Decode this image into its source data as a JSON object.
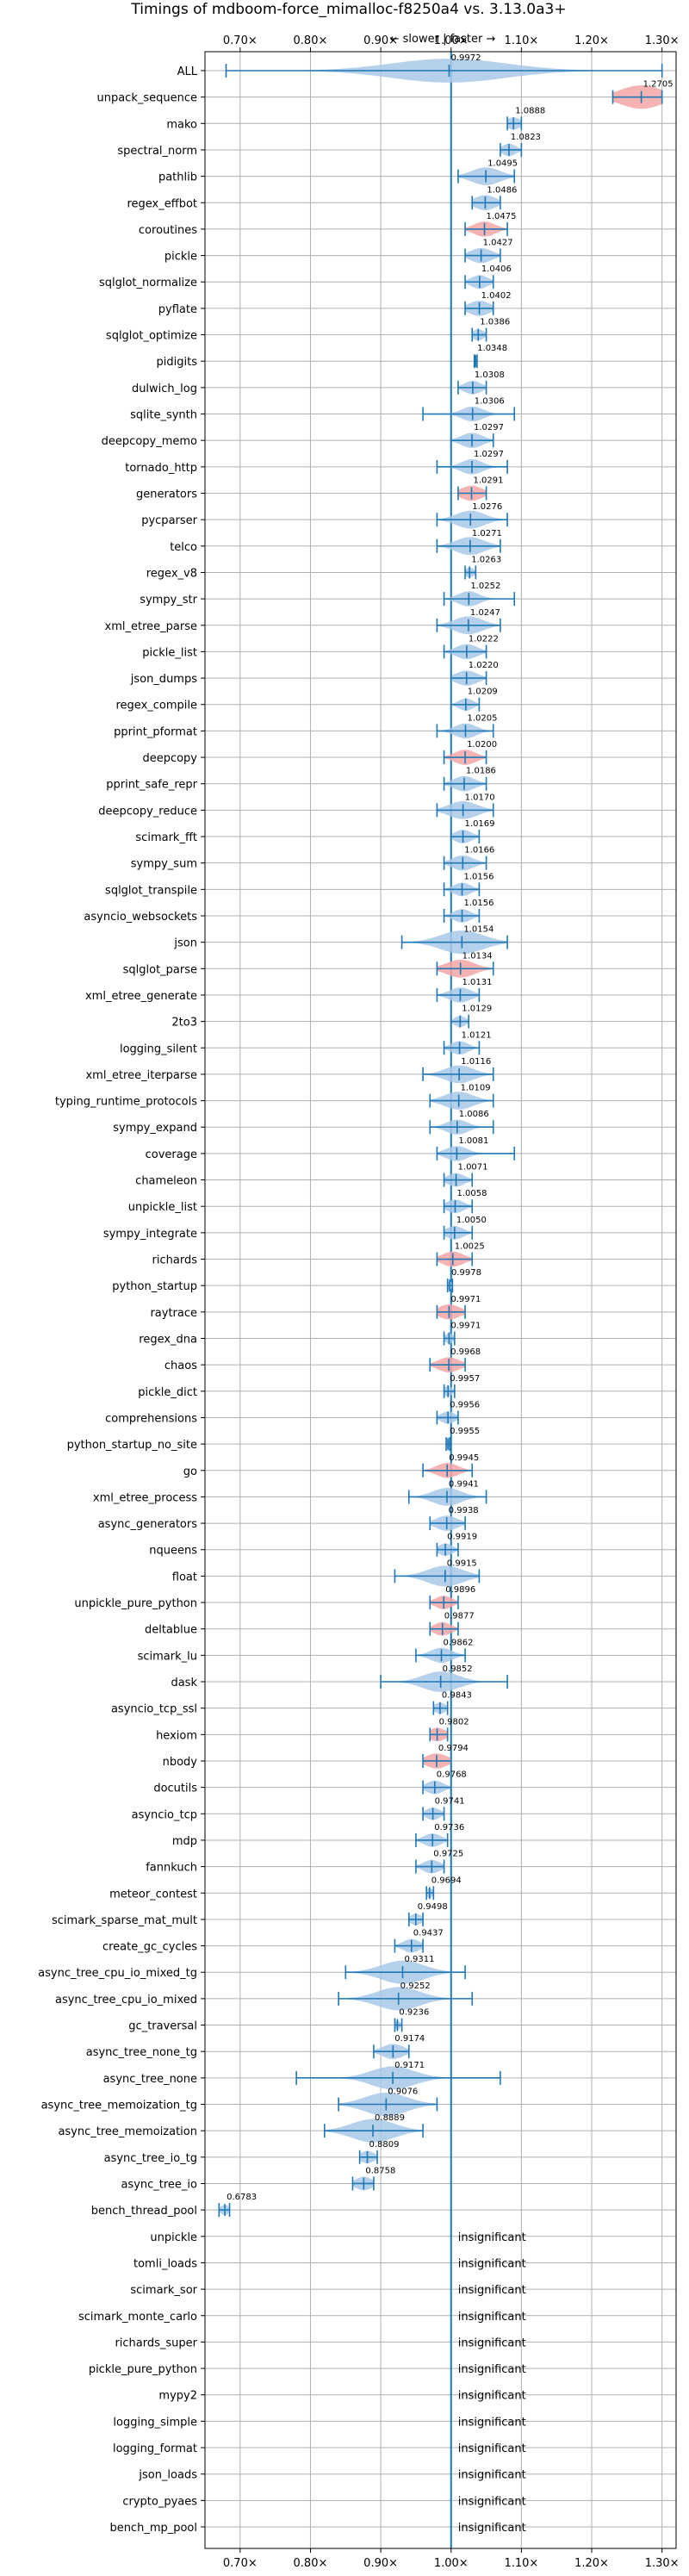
{
  "chart_data": {
    "type": "violin",
    "title": "Timings of mdboom-force_mimalloc-f8250a4 vs. 3.13.0a3+",
    "axis_label": "← slower | faster →",
    "xlim": [
      0.65,
      1.32
    ],
    "x_ticks": [
      0.7,
      0.8,
      0.9,
      1.0,
      1.1,
      1.2,
      1.3
    ],
    "x_tick_labels": [
      "0.70×",
      "0.80×",
      "0.90×",
      "1.00×",
      "1.10×",
      "1.20×",
      "1.30×"
    ],
    "grid": true,
    "colors": {
      "normal": "#a8c8e8",
      "highlight": "#f4a6a6",
      "line": "#1f77b4"
    },
    "insignificant_label": "insignificant",
    "benchmarks": [
      {
        "name": "ALL",
        "value": 0.9972,
        "label": "0.9972",
        "lo": 0.68,
        "hi": 1.3,
        "spread": 0.08,
        "highlight": false
      },
      {
        "name": "unpack_sequence",
        "value": 1.2705,
        "label": "1.2705",
        "lo": 1.23,
        "hi": 1.3,
        "spread": 0.03,
        "highlight": true
      },
      {
        "name": "mako",
        "value": 1.0888,
        "label": "1.0888",
        "lo": 1.08,
        "hi": 1.1,
        "spread": 0.01,
        "highlight": false
      },
      {
        "name": "spectral_norm",
        "value": 1.0823,
        "label": "1.0823",
        "lo": 1.07,
        "hi": 1.1,
        "spread": 0.01,
        "highlight": false
      },
      {
        "name": "pathlib",
        "value": 1.0495,
        "label": "1.0495",
        "lo": 1.01,
        "hi": 1.09,
        "spread": 0.02,
        "highlight": false
      },
      {
        "name": "regex_effbot",
        "value": 1.0486,
        "label": "1.0486",
        "lo": 1.03,
        "hi": 1.07,
        "spread": 0.015,
        "highlight": false
      },
      {
        "name": "coroutines",
        "value": 1.0475,
        "label": "1.0475",
        "lo": 1.02,
        "hi": 1.08,
        "spread": 0.015,
        "highlight": true
      },
      {
        "name": "pickle",
        "value": 1.0427,
        "label": "1.0427",
        "lo": 1.02,
        "hi": 1.07,
        "spread": 0.015,
        "highlight": false
      },
      {
        "name": "sqlglot_normalize",
        "value": 1.0406,
        "label": "1.0406",
        "lo": 1.02,
        "hi": 1.06,
        "spread": 0.012,
        "highlight": false
      },
      {
        "name": "pyflate",
        "value": 1.0402,
        "label": "1.0402",
        "lo": 1.02,
        "hi": 1.06,
        "spread": 0.015,
        "highlight": false
      },
      {
        "name": "sqlglot_optimize",
        "value": 1.0386,
        "label": "1.0386",
        "lo": 1.03,
        "hi": 1.05,
        "spread": 0.008,
        "highlight": false
      },
      {
        "name": "pidigits",
        "value": 1.0348,
        "label": "1.0348",
        "lo": 1.033,
        "hi": 1.037,
        "spread": 0.002,
        "highlight": false
      },
      {
        "name": "dulwich_log",
        "value": 1.0308,
        "label": "1.0308",
        "lo": 1.01,
        "hi": 1.05,
        "spread": 0.012,
        "highlight": false
      },
      {
        "name": "sqlite_synth",
        "value": 1.0306,
        "label": "1.0306",
        "lo": 0.96,
        "hi": 1.09,
        "spread": 0.015,
        "highlight": false
      },
      {
        "name": "deepcopy_memo",
        "value": 1.0297,
        "label": "1.0297",
        "lo": 1.0,
        "hi": 1.06,
        "spread": 0.015,
        "highlight": false
      },
      {
        "name": "tornado_http",
        "value": 1.0297,
        "label": "1.0297",
        "lo": 0.98,
        "hi": 1.08,
        "spread": 0.015,
        "highlight": false
      },
      {
        "name": "generators",
        "value": 1.0291,
        "label": "1.0291",
        "lo": 1.01,
        "hi": 1.05,
        "spread": 0.015,
        "highlight": true
      },
      {
        "name": "pycparser",
        "value": 1.0276,
        "label": "1.0276",
        "lo": 0.98,
        "hi": 1.08,
        "spread": 0.02,
        "highlight": false
      },
      {
        "name": "telco",
        "value": 1.0271,
        "label": "1.0271",
        "lo": 0.98,
        "hi": 1.07,
        "spread": 0.02,
        "highlight": false
      },
      {
        "name": "regex_v8",
        "value": 1.0263,
        "label": "1.0263",
        "lo": 1.02,
        "hi": 1.035,
        "spread": 0.006,
        "highlight": false
      },
      {
        "name": "sympy_str",
        "value": 1.0252,
        "label": "1.0252",
        "lo": 0.99,
        "hi": 1.09,
        "spread": 0.015,
        "highlight": false
      },
      {
        "name": "xml_etree_parse",
        "value": 1.0247,
        "label": "1.0247",
        "lo": 0.98,
        "hi": 1.07,
        "spread": 0.02,
        "highlight": false
      },
      {
        "name": "pickle_list",
        "value": 1.0222,
        "label": "1.0222",
        "lo": 0.99,
        "hi": 1.05,
        "spread": 0.015,
        "highlight": false
      },
      {
        "name": "json_dumps",
        "value": 1.022,
        "label": "1.0220",
        "lo": 1.0,
        "hi": 1.05,
        "spread": 0.015,
        "highlight": false
      },
      {
        "name": "regex_compile",
        "value": 1.0209,
        "label": "1.0209",
        "lo": 1.0,
        "hi": 1.04,
        "spread": 0.01,
        "highlight": false
      },
      {
        "name": "pprint_pformat",
        "value": 1.0205,
        "label": "1.0205",
        "lo": 0.98,
        "hi": 1.06,
        "spread": 0.015,
        "highlight": false
      },
      {
        "name": "deepcopy",
        "value": 1.02,
        "label": "1.0200",
        "lo": 0.99,
        "hi": 1.05,
        "spread": 0.015,
        "highlight": true
      },
      {
        "name": "pprint_safe_repr",
        "value": 1.0186,
        "label": "1.0186",
        "lo": 0.99,
        "hi": 1.05,
        "spread": 0.015,
        "highlight": false
      },
      {
        "name": "deepcopy_reduce",
        "value": 1.017,
        "label": "1.0170",
        "lo": 0.98,
        "hi": 1.06,
        "spread": 0.02,
        "highlight": false
      },
      {
        "name": "scimark_fft",
        "value": 1.0169,
        "label": "1.0169",
        "lo": 1.0,
        "hi": 1.04,
        "spread": 0.012,
        "highlight": false
      },
      {
        "name": "sympy_sum",
        "value": 1.0166,
        "label": "1.0166",
        "lo": 0.99,
        "hi": 1.05,
        "spread": 0.015,
        "highlight": false
      },
      {
        "name": "sqlglot_transpile",
        "value": 1.0156,
        "label": "1.0156",
        "lo": 0.99,
        "hi": 1.04,
        "spread": 0.012,
        "highlight": false
      },
      {
        "name": "asyncio_websockets",
        "value": 1.0156,
        "label": "1.0156",
        "lo": 0.99,
        "hi": 1.04,
        "spread": 0.012,
        "highlight": false
      },
      {
        "name": "json",
        "value": 1.0154,
        "label": "1.0154",
        "lo": 0.93,
        "hi": 1.08,
        "spread": 0.03,
        "highlight": false
      },
      {
        "name": "sqlglot_parse",
        "value": 1.0134,
        "label": "1.0134",
        "lo": 0.98,
        "hi": 1.06,
        "spread": 0.02,
        "highlight": true
      },
      {
        "name": "xml_etree_generate",
        "value": 1.0131,
        "label": "1.0131",
        "lo": 0.98,
        "hi": 1.04,
        "spread": 0.015,
        "highlight": false
      },
      {
        "name": "2to3",
        "value": 1.0129,
        "label": "1.0129",
        "lo": 1.0,
        "hi": 1.025,
        "spread": 0.008,
        "highlight": false
      },
      {
        "name": "logging_silent",
        "value": 1.0121,
        "label": "1.0121",
        "lo": 0.99,
        "hi": 1.04,
        "spread": 0.012,
        "highlight": false
      },
      {
        "name": "xml_etree_iterparse",
        "value": 1.0116,
        "label": "1.0116",
        "lo": 0.96,
        "hi": 1.06,
        "spread": 0.02,
        "highlight": false
      },
      {
        "name": "typing_runtime_protocols",
        "value": 1.0109,
        "label": "1.0109",
        "lo": 0.97,
        "hi": 1.06,
        "spread": 0.02,
        "highlight": false
      },
      {
        "name": "sympy_expand",
        "value": 1.0086,
        "label": "1.0086",
        "lo": 0.97,
        "hi": 1.06,
        "spread": 0.015,
        "highlight": false
      },
      {
        "name": "coverage",
        "value": 1.0081,
        "label": "1.0081",
        "lo": 0.98,
        "hi": 1.09,
        "spread": 0.015,
        "highlight": false
      },
      {
        "name": "chameleon",
        "value": 1.0071,
        "label": "1.0071",
        "lo": 0.99,
        "hi": 1.03,
        "spread": 0.012,
        "highlight": false
      },
      {
        "name": "unpickle_list",
        "value": 1.0058,
        "label": "1.0058",
        "lo": 0.99,
        "hi": 1.03,
        "spread": 0.012,
        "highlight": false
      },
      {
        "name": "sympy_integrate",
        "value": 1.005,
        "label": "1.0050",
        "lo": 0.99,
        "hi": 1.03,
        "spread": 0.012,
        "highlight": false
      },
      {
        "name": "richards",
        "value": 1.0025,
        "label": "1.0025",
        "lo": 0.98,
        "hi": 1.03,
        "spread": 0.015,
        "highlight": true
      },
      {
        "name": "python_startup",
        "value": 0.9978,
        "label": "0.9978",
        "lo": 0.995,
        "hi": 1.002,
        "spread": 0.003,
        "highlight": false
      },
      {
        "name": "raytrace",
        "value": 0.9971,
        "label": "0.9971",
        "lo": 0.98,
        "hi": 1.02,
        "spread": 0.015,
        "highlight": true
      },
      {
        "name": "regex_dna",
        "value": 0.9971,
        "label": "0.9971",
        "lo": 0.99,
        "hi": 1.005,
        "spread": 0.006,
        "highlight": false
      },
      {
        "name": "chaos",
        "value": 0.9968,
        "label": "0.9968",
        "lo": 0.97,
        "hi": 1.02,
        "spread": 0.015,
        "highlight": true
      },
      {
        "name": "pickle_dict",
        "value": 0.9957,
        "label": "0.9957",
        "lo": 0.99,
        "hi": 1.005,
        "spread": 0.006,
        "highlight": false
      },
      {
        "name": "comprehensions",
        "value": 0.9956,
        "label": "0.9956",
        "lo": 0.98,
        "hi": 1.01,
        "spread": 0.01,
        "highlight": false
      },
      {
        "name": "python_startup_no_site",
        "value": 0.9955,
        "label": "0.9955",
        "lo": 0.993,
        "hi": 0.998,
        "spread": 0.003,
        "highlight": false
      },
      {
        "name": "go",
        "value": 0.9945,
        "label": "0.9945",
        "lo": 0.96,
        "hi": 1.03,
        "spread": 0.015,
        "highlight": true
      },
      {
        "name": "xml_etree_process",
        "value": 0.9941,
        "label": "0.9941",
        "lo": 0.94,
        "hi": 1.05,
        "spread": 0.02,
        "highlight": false
      },
      {
        "name": "async_generators",
        "value": 0.9938,
        "label": "0.9938",
        "lo": 0.97,
        "hi": 1.02,
        "spread": 0.015,
        "highlight": false
      },
      {
        "name": "nqueens",
        "value": 0.9919,
        "label": "0.9919",
        "lo": 0.98,
        "hi": 1.01,
        "spread": 0.01,
        "highlight": false
      },
      {
        "name": "float",
        "value": 0.9915,
        "label": "0.9915",
        "lo": 0.92,
        "hi": 1.04,
        "spread": 0.025,
        "highlight": false
      },
      {
        "name": "unpickle_pure_python",
        "value": 0.9896,
        "label": "0.9896",
        "lo": 0.97,
        "hi": 1.01,
        "spread": 0.012,
        "highlight": true
      },
      {
        "name": "deltablue",
        "value": 0.9877,
        "label": "0.9877",
        "lo": 0.97,
        "hi": 1.01,
        "spread": 0.012,
        "highlight": true
      },
      {
        "name": "scimark_lu",
        "value": 0.9862,
        "label": "0.9862",
        "lo": 0.95,
        "hi": 1.02,
        "spread": 0.015,
        "highlight": false
      },
      {
        "name": "dask",
        "value": 0.9852,
        "label": "0.9852",
        "lo": 0.9,
        "hi": 1.08,
        "spread": 0.025,
        "highlight": false
      },
      {
        "name": "asyncio_tcp_ssl",
        "value": 0.9843,
        "label": "0.9843",
        "lo": 0.975,
        "hi": 0.995,
        "spread": 0.008,
        "highlight": false
      },
      {
        "name": "hexiom",
        "value": 0.9802,
        "label": "0.9802",
        "lo": 0.97,
        "hi": 0.995,
        "spread": 0.012,
        "highlight": true
      },
      {
        "name": "nbody",
        "value": 0.9794,
        "label": "0.9794",
        "lo": 0.96,
        "hi": 1.0,
        "spread": 0.015,
        "highlight": true
      },
      {
        "name": "docutils",
        "value": 0.9768,
        "label": "0.9768",
        "lo": 0.96,
        "hi": 1.0,
        "spread": 0.012,
        "highlight": false
      },
      {
        "name": "asyncio_tcp",
        "value": 0.9741,
        "label": "0.9741",
        "lo": 0.96,
        "hi": 0.99,
        "spread": 0.01,
        "highlight": false
      },
      {
        "name": "mdp",
        "value": 0.9736,
        "label": "0.9736",
        "lo": 0.95,
        "hi": 0.995,
        "spread": 0.012,
        "highlight": false
      },
      {
        "name": "fannkuch",
        "value": 0.9725,
        "label": "0.9725",
        "lo": 0.95,
        "hi": 0.99,
        "spread": 0.012,
        "highlight": false
      },
      {
        "name": "meteor_contest",
        "value": 0.9694,
        "label": "0.9694",
        "lo": 0.965,
        "hi": 0.975,
        "spread": 0.005,
        "highlight": false
      },
      {
        "name": "scimark_sparse_mat_mult",
        "value": 0.9498,
        "label": "0.9498",
        "lo": 0.94,
        "hi": 0.96,
        "spread": 0.008,
        "highlight": false
      },
      {
        "name": "create_gc_cycles",
        "value": 0.9437,
        "label": "0.9437",
        "lo": 0.92,
        "hi": 0.96,
        "spread": 0.012,
        "highlight": false
      },
      {
        "name": "async_tree_cpu_io_mixed_tg",
        "value": 0.9311,
        "label": "0.9311",
        "lo": 0.85,
        "hi": 1.02,
        "spread": 0.03,
        "highlight": false
      },
      {
        "name": "async_tree_cpu_io_mixed",
        "value": 0.9252,
        "label": "0.9252",
        "lo": 0.84,
        "hi": 1.03,
        "spread": 0.03,
        "highlight": false
      },
      {
        "name": "gc_traversal",
        "value": 0.9236,
        "label": "0.9236",
        "lo": 0.92,
        "hi": 0.93,
        "spread": 0.004,
        "highlight": false
      },
      {
        "name": "async_tree_none_tg",
        "value": 0.9174,
        "label": "0.9174",
        "lo": 0.89,
        "hi": 0.94,
        "spread": 0.015,
        "highlight": false
      },
      {
        "name": "async_tree_none",
        "value": 0.9171,
        "label": "0.9171",
        "lo": 0.78,
        "hi": 1.07,
        "spread": 0.03,
        "highlight": false
      },
      {
        "name": "async_tree_memoization_tg",
        "value": 0.9076,
        "label": "0.9076",
        "lo": 0.84,
        "hi": 0.98,
        "spread": 0.03,
        "highlight": false
      },
      {
        "name": "async_tree_memoization",
        "value": 0.8889,
        "label": "0.8889",
        "lo": 0.82,
        "hi": 0.96,
        "spread": 0.03,
        "highlight": false
      },
      {
        "name": "async_tree_io_tg",
        "value": 0.8809,
        "label": "0.8809",
        "lo": 0.87,
        "hi": 0.895,
        "spread": 0.01,
        "highlight": false
      },
      {
        "name": "async_tree_io",
        "value": 0.8758,
        "label": "0.8758",
        "lo": 0.86,
        "hi": 0.89,
        "spread": 0.012,
        "highlight": false
      },
      {
        "name": "bench_thread_pool",
        "value": 0.6783,
        "label": "0.6783",
        "lo": 0.67,
        "hi": 0.685,
        "spread": 0.006,
        "highlight": false
      },
      {
        "name": "unpickle",
        "value": null,
        "label": "",
        "insignificant": true
      },
      {
        "name": "tomli_loads",
        "value": null,
        "label": "",
        "insignificant": true
      },
      {
        "name": "scimark_sor",
        "value": null,
        "label": "",
        "insignificant": true
      },
      {
        "name": "scimark_monte_carlo",
        "value": null,
        "label": "",
        "insignificant": true
      },
      {
        "name": "richards_super",
        "value": null,
        "label": "",
        "insignificant": true
      },
      {
        "name": "pickle_pure_python",
        "value": null,
        "label": "",
        "insignificant": true
      },
      {
        "name": "mypy2",
        "value": null,
        "label": "",
        "insignificant": true
      },
      {
        "name": "logging_simple",
        "value": null,
        "label": "",
        "insignificant": true
      },
      {
        "name": "logging_format",
        "value": null,
        "label": "",
        "insignificant": true
      },
      {
        "name": "json_loads",
        "value": null,
        "label": "",
        "insignificant": true
      },
      {
        "name": "crypto_pyaes",
        "value": null,
        "label": "",
        "insignificant": true
      },
      {
        "name": "bench_mp_pool",
        "value": null,
        "label": "",
        "insignificant": true
      }
    ]
  }
}
